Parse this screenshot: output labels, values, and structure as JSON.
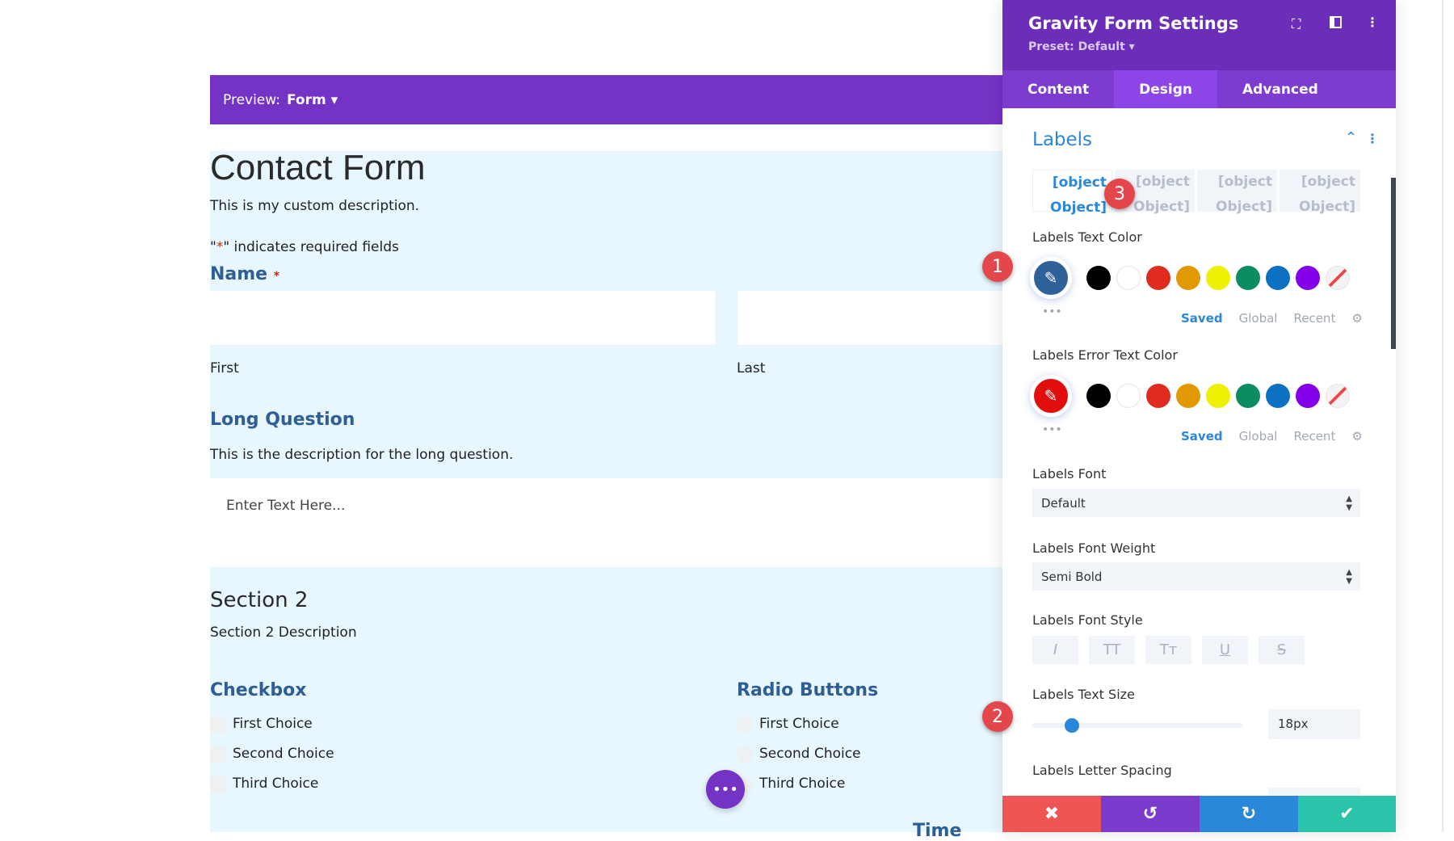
{
  "preview": {
    "label": "Preview:",
    "value": "Form"
  },
  "form": {
    "title": "Contact Form",
    "description": "This is my custom description.",
    "required_note_pre": "\"",
    "required_star": "*",
    "required_note_post": "\" indicates required fields",
    "name_label": "Name",
    "name_star": "*",
    "first": "First",
    "last": "Last",
    "long_q_label": "Long Question",
    "long_q_desc": "This is the description for the long question.",
    "long_q_placeholder": "Enter Text Here...",
    "section_title": "Section 2",
    "section_desc": "Section 2 Description",
    "checkbox_label": "Checkbox",
    "checkbox_choices": [
      "First Choice",
      "Second Choice",
      "Third Choice"
    ],
    "radio_label": "Radio Buttons",
    "radio_choices": [
      "First Choice",
      "Second Choice",
      "Third Choice"
    ],
    "cut_label": "Time"
  },
  "panel": {
    "title": "Gravity Form Settings",
    "preset": "Preset: Default ▾",
    "tabs": [
      "Content",
      "Design",
      "Advanced"
    ],
    "section": "Labels",
    "label_tabs": [
      [
        "[object",
        "Object]"
      ],
      [
        "[object",
        "Object]"
      ],
      [
        "[object",
        "Object]"
      ],
      [
        "[object",
        "Object]"
      ]
    ],
    "text_color_label": "Labels Text Color",
    "text_color": "#2e6199",
    "error_color_label": "Labels Error Text Color",
    "error_color": "#e20d0d",
    "swatches": [
      "#000000",
      "#ffffff",
      "#e02b20",
      "#e09900",
      "#edf000",
      "#0c8c5f",
      "#0c71c3",
      "#8300e9"
    ],
    "palette_tabs": [
      "Saved",
      "Global",
      "Recent"
    ],
    "font_label": "Labels Font",
    "font_value": "Default",
    "weight_label": "Labels Font Weight",
    "weight_value": "Semi Bold",
    "style_label": "Labels Font Style",
    "style_buttons": [
      "I",
      "TT",
      "Tт",
      "U",
      "S"
    ],
    "size_label": "Labels Text Size",
    "size_value": "18px",
    "size_slider_fraction": 0.19,
    "spacing_label": "Labels Letter Spacing"
  },
  "badges": [
    "1",
    "2",
    "3"
  ],
  "colors": {
    "accent": "#7433c5",
    "cancel": "#ef5555",
    "undo": "#7b3bcc",
    "redo": "#2b87da",
    "save": "#29c4a9"
  }
}
